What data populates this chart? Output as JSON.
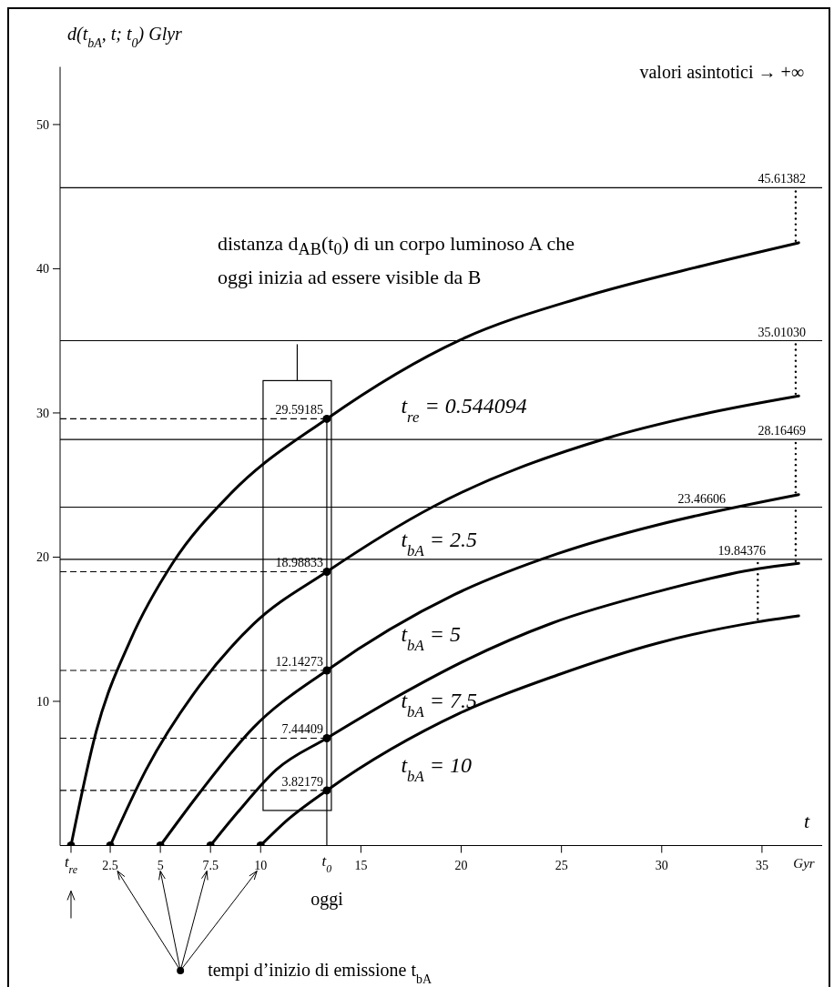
{
  "chart_data": {
    "type": "line",
    "ylabel": "d(t$_{bA}$, t; t$_{0}$) Glyr",
    "xlabel": "t",
    "xlim": [
      0,
      38
    ],
    "ylim": [
      0,
      54
    ],
    "xticks": [
      {
        "value": 0.544094,
        "label": "t$_{re}$"
      },
      2.5,
      5,
      7.5,
      10,
      15,
      20,
      25,
      30,
      35
    ],
    "yticks": [
      10,
      20,
      30,
      40,
      50
    ],
    "marker": "none",
    "line_style": "solid",
    "legend": false,
    "series": [
      {
        "name": "t$_{re}$ = 0.544094",
        "color": "#000000",
        "x": [
          0.544094,
          1.8,
          3.52,
          5.62,
          8.49,
          13.3,
          19.96,
          26.02,
          32.07,
          36.83
        ],
        "values": [
          0,
          7.91,
          14.28,
          19.6,
          24.38,
          29.59185,
          35.07,
          38.01,
          40.22,
          41.8
        ]
      },
      {
        "name": "t$_{bA}$ = 2.5",
        "color": "#000000",
        "x": [
          2.5,
          4.29,
          6.96,
          9.64,
          13.3,
          18.6,
          27.23,
          32.07,
          36.83
        ],
        "values": [
          0,
          5.26,
          11.1,
          15.35,
          18.98833,
          23.5,
          28.23,
          29.92,
          31.18
        ]
      },
      {
        "name": "t$_{bA}$ = 5",
        "color": "#000000",
        "x": [
          5,
          6.96,
          9.64,
          13.3,
          19.66,
          24.81,
          29.8,
          32.07,
          36.83
        ],
        "values": [
          0,
          3.66,
          8.18,
          12.14273,
          17.4,
          20.24,
          22.24,
          22.98,
          24.34
        ]
      },
      {
        "name": "t$_{bA}$ = 7.5",
        "color": "#000000",
        "x": [
          7.5,
          8.87,
          10.78,
          13.3,
          17.39,
          20.27,
          24.5,
          29.8,
          34.79,
          36.83
        ],
        "values": [
          0,
          2.33,
          5.26,
          7.44409,
          10.78,
          12.88,
          15.41,
          17.61,
          19.19,
          19.57
        ]
      },
      {
        "name": "t$_{bA}$ = 10",
        "color": "#000000",
        "x": [
          10,
          11.36,
          13.3,
          19.96,
          24.81,
          29.8,
          34.79,
          36.83
        ],
        "values": [
          0,
          1.8,
          3.82179,
          9.2,
          11.83,
          14.04,
          15.51,
          15.93
        ]
      },
      {
        "type": "scatter",
        "marker": "circle",
        "color": "#000000",
        "x": [
          0.544094,
          2.5,
          5,
          7.5,
          10
        ],
        "values": [
          0,
          0,
          0,
          0,
          0
        ]
      },
      {
        "type": "scatter",
        "marker": "circle",
        "color": "#000000",
        "x": [
          13.3,
          13.3,
          13.3,
          13.3,
          13.3
        ],
        "values": [
          29.59185,
          18.98833,
          12.14273,
          7.44409,
          3.82179
        ]
      }
    ],
    "ref_lines": [
      {
        "axis": "y",
        "value": 45.61382,
        "label": "45.61382",
        "color": "#000000",
        "line_style": "solid"
      },
      {
        "axis": "y",
        "value": 35.0103,
        "label": "35.01030",
        "color": "#000000",
        "line_style": "solid"
      },
      {
        "axis": "y",
        "value": 28.16469,
        "label": "28.16469",
        "color": "#000000",
        "line_style": "solid"
      },
      {
        "axis": "y",
        "value": 23.46606,
        "label": "23.46606",
        "color": "#000000",
        "line_style": "solid"
      },
      {
        "axis": "y",
        "value": 19.84376,
        "label": "19.84376",
        "color": "#000000",
        "line_style": "solid"
      },
      {
        "axis": "y",
        "value": 29.59185,
        "label": "29.59185",
        "color": "#000000",
        "line_style": "dashed"
      },
      {
        "axis": "y",
        "value": 18.98833,
        "label": "18.98833",
        "color": "#000000",
        "line_style": "dashed"
      },
      {
        "axis": "y",
        "value": 12.14273,
        "label": "12.14273",
        "color": "#000000",
        "line_style": "dashed"
      },
      {
        "axis": "y",
        "value": 7.44409,
        "label": "7.44409",
        "color": "#000000",
        "line_style": "dashed"
      },
      {
        "axis": "y",
        "value": 3.82179,
        "label": "3.82179",
        "color": "#000000",
        "line_style": "dashed"
      },
      {
        "axis": "x",
        "value": 13.3,
        "label": "t$_{0}$",
        "color": "#000000",
        "line_style": "solid"
      }
    ],
    "annotations": [
      "valori asintotici → +∞",
      "distanza d$_{AB}$(t$_{0}$) di un corpo luminoso A che oggi inizia ad essere visible da B",
      "oggi",
      "tempi d’inizio di emissione t$_{bA}$",
      "Gyr"
    ]
  }
}
